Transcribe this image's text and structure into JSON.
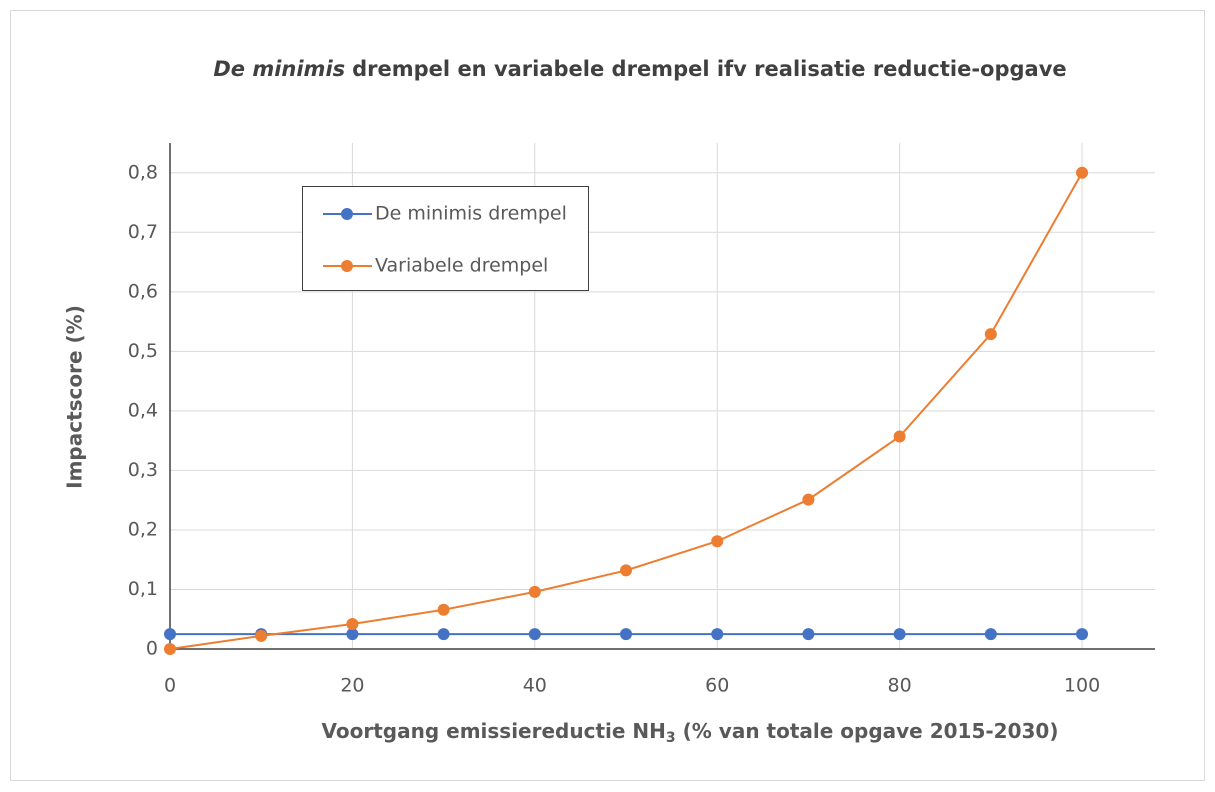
{
  "chart_data": {
    "type": "line",
    "title": [
      "De minimis",
      "drempel en variabele drempel ifv realisatie reductie-opgave"
    ],
    "xlabel": [
      "Voortgang emissiereductie NH",
      "3",
      "(% van totale opgave 2015-2030)"
    ],
    "ylabel": "Impactscore (%)",
    "x": [
      0,
      10,
      20,
      30,
      40,
      50,
      60,
      70,
      80,
      90,
      100
    ],
    "series": [
      {
        "name": "De minimis drempel",
        "color": "#4472c4",
        "values": [
          0.025,
          0.025,
          0.025,
          0.025,
          0.025,
          0.025,
          0.025,
          0.025,
          0.025,
          0.025,
          0.025
        ]
      },
      {
        "name": "Variabele drempel",
        "color": "#ed7d31",
        "values": [
          0,
          0.022,
          0.042,
          0.066,
          0.096,
          0.132,
          0.181,
          0.251,
          0.357,
          0.529,
          0.8
        ]
      }
    ],
    "xlim": [
      0,
      108
    ],
    "xticks": [
      0,
      20,
      40,
      60,
      80,
      100
    ],
    "ylim": [
      0,
      0.85
    ],
    "yticks": [
      0,
      {
        "value": 0.1,
        "label": "0,1"
      },
      {
        "value": 0.2,
        "label": "0,2"
      },
      {
        "value": 0.3,
        "label": "0,3"
      },
      {
        "value": 0.4,
        "label": "0,4"
      },
      {
        "value": 0.5,
        "label": "0,5"
      },
      {
        "value": 0.6,
        "label": "0,6"
      },
      {
        "value": 0.7,
        "label": "0,7"
      },
      {
        "value": 0.8,
        "label": "0,8"
      }
    ],
    "grid": true,
    "legend": "upper left"
  }
}
